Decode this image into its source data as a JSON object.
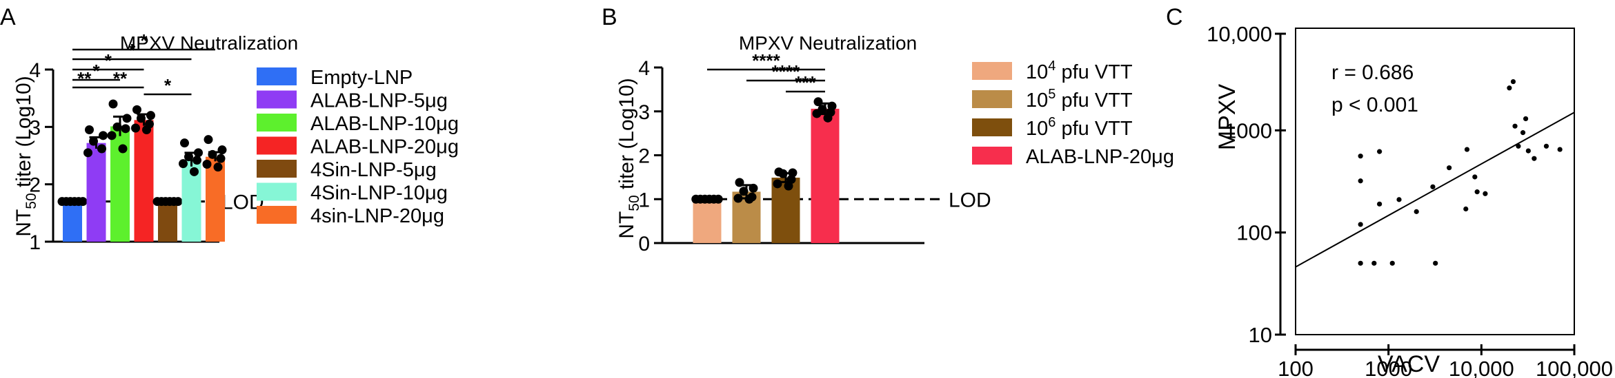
{
  "panel_labels": [
    "A",
    "B",
    "C"
  ],
  "chart_data": [
    {
      "type": "bar",
      "title": "MPXV Neutralization",
      "ylabel": "NT50 titer (Log10)",
      "ylabel_main": "NT",
      "ylabel_sub": "50",
      "ylabel_rest": " titer (Log10)",
      "ylim": [
        1,
        4
      ],
      "yticks": [
        1,
        2,
        3,
        4
      ],
      "yticks_labels": [
        "1",
        "2",
        "3",
        "4"
      ],
      "lod": 1.7,
      "lod_label": "LOD",
      "categories": [
        "Empty-LNP",
        "ALAB-LNP-5μg",
        "ALAB-LNP-10μg",
        "ALAB-LNP-20μg",
        "4Sin-LNP-5μg",
        "4Sin-LNP-10μg",
        "4sin-LNP-20μg"
      ],
      "colors": [
        "#2f6ff5",
        "#8f3cf4",
        "#5df02d",
        "#f52424",
        "#7f4a10",
        "#86f6d6",
        "#f86c26"
      ],
      "values": [
        1.7,
        2.72,
        3.01,
        3.12,
        1.7,
        2.43,
        2.48
      ],
      "errors": [
        0,
        0.1,
        0.17,
        0.1,
        0,
        0.12,
        0.08
      ],
      "points": [
        [
          1.7,
          1.7,
          1.7,
          1.7,
          1.7,
          1.7
        ],
        [
          2.95,
          2.85,
          2.75,
          2.62,
          2.55
        ],
        [
          3.4,
          3.15,
          3.0,
          2.97,
          2.85,
          2.62
        ],
        [
          3.3,
          3.2,
          3.15,
          3.05,
          2.98,
          2.95
        ],
        [
          1.7,
          1.7,
          1.7,
          1.7,
          1.7,
          1.7
        ],
        [
          2.72,
          2.55,
          2.48,
          2.42,
          2.36,
          2.22
        ],
        [
          2.78,
          2.6,
          2.52,
          2.45,
          2.35,
          2.3
        ]
      ],
      "significance": [
        {
          "from": 0,
          "to": 6,
          "label": "*"
        },
        {
          "from": 0,
          "to": 5,
          "label": "*"
        },
        {
          "from": 0,
          "to": 3,
          "label": "*"
        },
        {
          "from": 0,
          "to": 2,
          "label": "*"
        },
        {
          "from": 0,
          "to": 1,
          "label": "**"
        },
        {
          "from": 1,
          "to": 3,
          "label": "**"
        },
        {
          "from": 3,
          "to": 5,
          "label": "*"
        }
      ]
    },
    {
      "type": "bar",
      "title": "MPXV Neutralization",
      "ylabel": "NT50 titer (Log10)",
      "ylabel_main": "NT",
      "ylabel_sub": "50",
      "ylabel_rest": " titer (Log10)",
      "ylim": [
        0,
        4
      ],
      "yticks": [
        0,
        1,
        2,
        3,
        4
      ],
      "yticks_labels": [
        "0",
        "1",
        "2",
        "3",
        "4"
      ],
      "lod": 1.0,
      "lod_label": "LOD",
      "categories": [
        "10^4 pfu VTT",
        "10^5 pfu VTT",
        "10^6 pfu VTT",
        "ALAB-LNP-20μg"
      ],
      "legend": [
        {
          "base": "10",
          "exp": "4",
          "rest": " pfu VTT"
        },
        {
          "base": "10",
          "exp": "5",
          "rest": " pfu VTT"
        },
        {
          "base": "10",
          "exp": "6",
          "rest": " pfu VTT"
        },
        {
          "base": "ALAB-LNP-20μg",
          "exp": "",
          "rest": ""
        }
      ],
      "colors": [
        "#efa87e",
        "#bb8c48",
        "#7e4f0d",
        "#f72e4d"
      ],
      "values": [
        1.0,
        1.17,
        1.49,
        3.06
      ],
      "errors": [
        0,
        0.15,
        0.1,
        0.12
      ],
      "points": [
        [
          1.0,
          1.0,
          1.0,
          1.0,
          1.0,
          1.0
        ],
        [
          1.38,
          1.25,
          1.18,
          1.05,
          1.02,
          1.0
        ],
        [
          1.62,
          1.6,
          1.58,
          1.45,
          1.35,
          1.3
        ],
        [
          3.22,
          3.12,
          3.05,
          2.98,
          2.95,
          2.85
        ]
      ],
      "significance": [
        {
          "from": 0,
          "to": 3,
          "label": "****"
        },
        {
          "from": 1,
          "to": 3,
          "label": "****"
        },
        {
          "from": 2,
          "to": 3,
          "label": "***"
        }
      ]
    },
    {
      "type": "scatter",
      "xlabel": "VACV",
      "ylabel": "MPXV",
      "xscale": "log",
      "yscale": "log",
      "xlim": [
        100,
        100000
      ],
      "ylim": [
        10,
        10000
      ],
      "xticks": [
        100,
        1000,
        10000,
        100000
      ],
      "xtick_labels": [
        "100",
        "1000",
        "10,000",
        "100,000"
      ],
      "yticks": [
        10,
        100,
        1000,
        10000
      ],
      "ytick_labels": [
        "10",
        "100",
        "1000",
        "10,000"
      ],
      "annotations": [
        "r = 0.686",
        "p < 0.001"
      ],
      "fit_line": {
        "x": [
          100,
          100000
        ],
        "y": [
          46,
          1500
        ]
      },
      "x": [
        500,
        500,
        800,
        500,
        800,
        1300,
        2000,
        3000,
        4500,
        7000,
        8500,
        11000,
        20000,
        22000,
        23000,
        25000,
        28000,
        30000,
        32000,
        37000,
        50000,
        70000,
        500,
        700,
        1100,
        3200,
        6800,
        9000
      ],
      "y": [
        560,
        320,
        620,
        120,
        190,
        210,
        160,
        280,
        430,
        650,
        350,
        240,
        2600,
        3000,
        1100,
        700,
        950,
        1300,
        630,
        530,
        700,
        650,
        50,
        50,
        50,
        50,
        170,
        250
      ]
    }
  ]
}
